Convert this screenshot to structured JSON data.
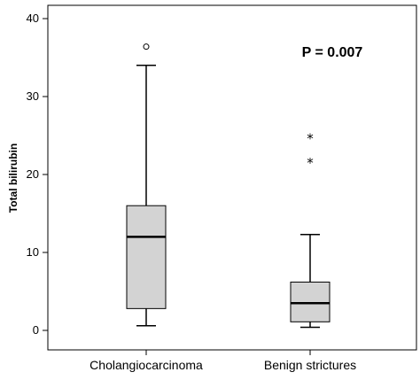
{
  "chart_data": {
    "type": "boxplot",
    "ylabel": "Total bilirubin",
    "xlabel": "",
    "ylim": [
      0,
      40
    ],
    "yticks": [
      0,
      10,
      20,
      30,
      40
    ],
    "categories": [
      "Cholangiocarcinoma",
      "Benign strictures"
    ],
    "boxes": [
      {
        "category": "Cholangiocarcinoma",
        "whisker_low": 0.6,
        "q1": 2.8,
        "median": 12.0,
        "q3": 16.0,
        "whisker_high": 34.0,
        "outliers": [
          36.4
        ],
        "extremes": []
      },
      {
        "category": "Benign strictures",
        "whisker_low": 0.4,
        "q1": 1.1,
        "median": 3.5,
        "q3": 6.2,
        "whisker_high": 12.3,
        "outliers": [],
        "extremes": [
          21.6,
          24.7
        ]
      }
    ],
    "annotations": [
      "P = 0.007"
    ],
    "grid": false,
    "box_color": "#d3d3d3"
  }
}
